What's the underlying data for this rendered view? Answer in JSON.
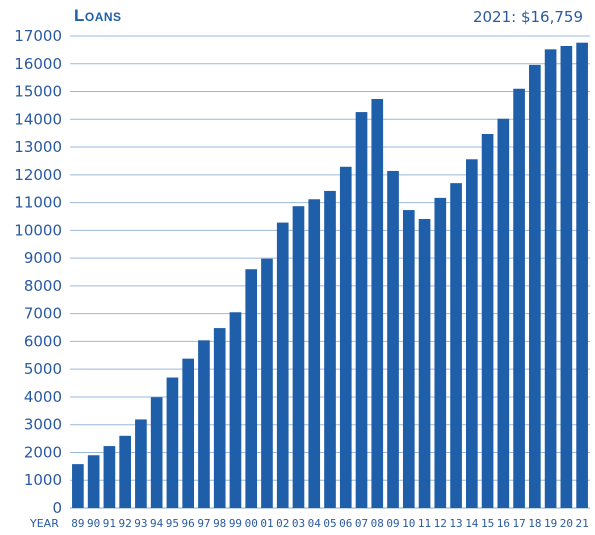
{
  "chart_data": {
    "type": "bar",
    "title": "Loans",
    "annotation": "2021: $16,759",
    "xlabel": "YEAR",
    "ylabel": "",
    "ylim": [
      0,
      17000
    ],
    "yticks": [
      0,
      1000,
      2000,
      3000,
      4000,
      5000,
      6000,
      7000,
      8000,
      9000,
      10000,
      11000,
      12000,
      13000,
      14000,
      15000,
      16000,
      17000
    ],
    "grid": true,
    "categories": [
      "89",
      "90",
      "91",
      "92",
      "93",
      "94",
      "95",
      "96",
      "97",
      "98",
      "99",
      "00",
      "01",
      "02",
      "03",
      "04",
      "05",
      "06",
      "07",
      "08",
      "09",
      "10",
      "11",
      "12",
      "13",
      "14",
      "15",
      "16",
      "17",
      "18",
      "19",
      "20",
      "21"
    ],
    "values": [
      1580,
      1900,
      2230,
      2600,
      3190,
      3990,
      4700,
      5380,
      6040,
      6480,
      7050,
      8600,
      8980,
      10280,
      10870,
      11120,
      11420,
      12290,
      14260,
      14730,
      12140,
      10730,
      10410,
      11170,
      11700,
      12560,
      13470,
      14020,
      15100,
      15960,
      16520,
      16640,
      16759
    ],
    "bar_color": "#1f5ea8",
    "grid_color": "#9bb9dc",
    "axis_text_color": "#2a5aa0"
  }
}
